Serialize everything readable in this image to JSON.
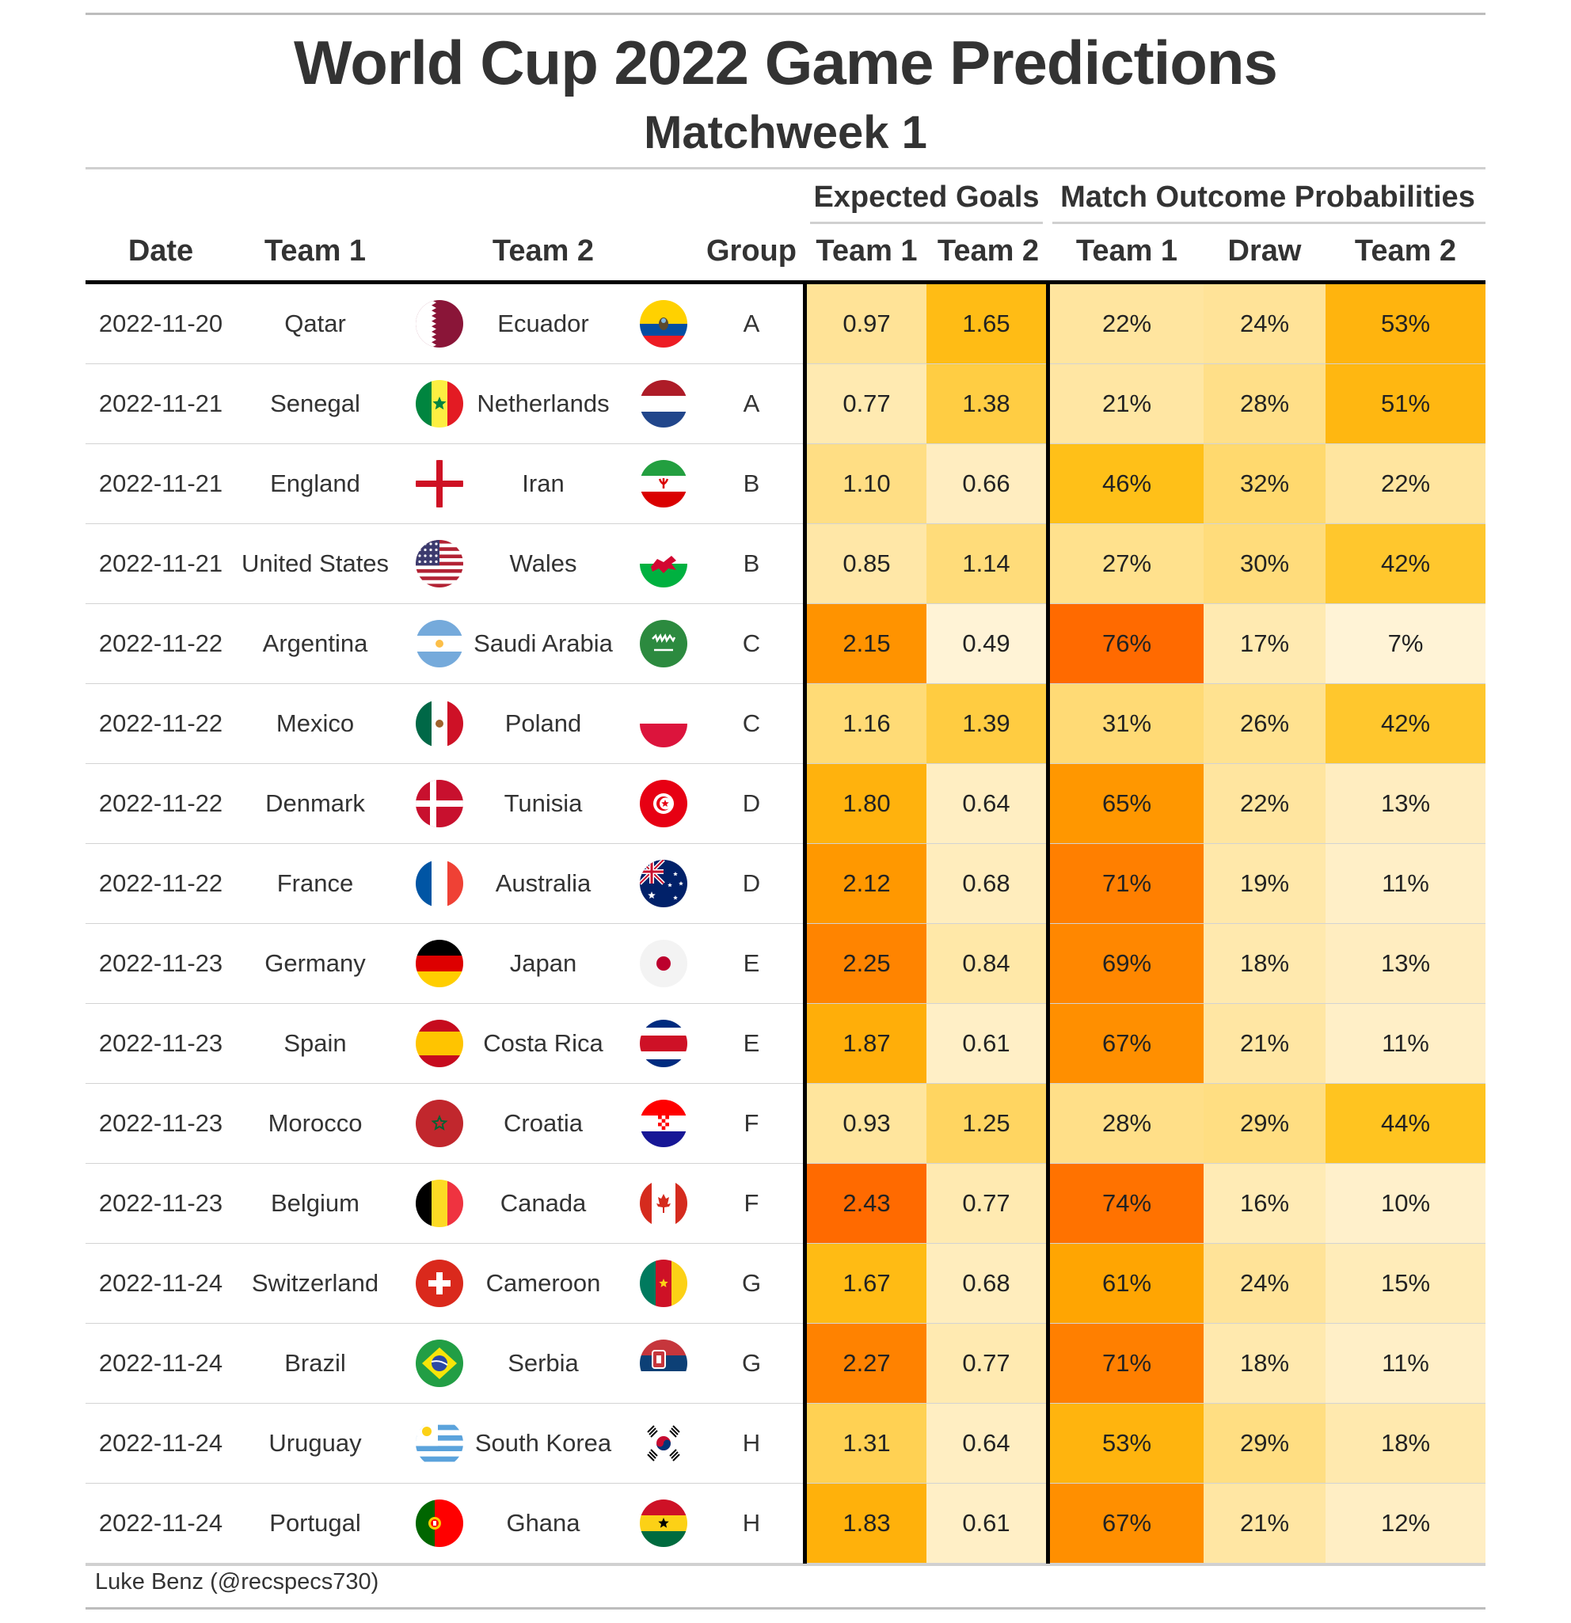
{
  "header": {
    "title": "World Cup 2022 Game Predictions",
    "subtitle": "Matchweek 1"
  },
  "spanners": {
    "expected_goals": "Expected Goals",
    "outcome_probs": "Match Outcome Probabilities"
  },
  "columns": {
    "date": "Date",
    "team1": "Team 1",
    "team2": "Team 2",
    "group": "Group",
    "xg1": "Team 1",
    "xg2": "Team 2",
    "p1": "Team 1",
    "draw": "Draw",
    "p2": "Team 2"
  },
  "footer": {
    "source": "Luke Benz (@recspecs730)"
  },
  "colors": {
    "scale_low": "#fff3d6",
    "scale_high": "#ff6a00"
  },
  "chart_data": {
    "type": "table",
    "rows": [
      {
        "date": "2022-11-20",
        "team1": "Qatar",
        "flag1": "qatar-flag-icon",
        "team2": "Ecuador",
        "flag2": "ecuador-flag-icon",
        "group": "A",
        "xg1": "0.97",
        "xg2": "1.65",
        "p1": "22%",
        "draw": "24%",
        "p2": "53%"
      },
      {
        "date": "2022-11-21",
        "team1": "Senegal",
        "flag1": "senegal-flag-icon",
        "team2": "Netherlands",
        "flag2": "netherlands-flag-icon",
        "group": "A",
        "xg1": "0.77",
        "xg2": "1.38",
        "p1": "21%",
        "draw": "28%",
        "p2": "51%"
      },
      {
        "date": "2022-11-21",
        "team1": "England",
        "flag1": "england-flag-icon",
        "team2": "Iran",
        "flag2": "iran-flag-icon",
        "group": "B",
        "xg1": "1.10",
        "xg2": "0.66",
        "p1": "46%",
        "draw": "32%",
        "p2": "22%"
      },
      {
        "date": "2022-11-21",
        "team1": "United States",
        "flag1": "usa-flag-icon",
        "team2": "Wales",
        "flag2": "wales-flag-icon",
        "group": "B",
        "xg1": "0.85",
        "xg2": "1.14",
        "p1": "27%",
        "draw": "30%",
        "p2": "42%"
      },
      {
        "date": "2022-11-22",
        "team1": "Argentina",
        "flag1": "argentina-flag-icon",
        "team2": "Saudi Arabia",
        "flag2": "saudi-arabia-flag-icon",
        "group": "C",
        "xg1": "2.15",
        "xg2": "0.49",
        "p1": "76%",
        "draw": "17%",
        "p2": "7%"
      },
      {
        "date": "2022-11-22",
        "team1": "Mexico",
        "flag1": "mexico-flag-icon",
        "team2": "Poland",
        "flag2": "poland-flag-icon",
        "group": "C",
        "xg1": "1.16",
        "xg2": "1.39",
        "p1": "31%",
        "draw": "26%",
        "p2": "42%"
      },
      {
        "date": "2022-11-22",
        "team1": "Denmark",
        "flag1": "denmark-flag-icon",
        "team2": "Tunisia",
        "flag2": "tunisia-flag-icon",
        "group": "D",
        "xg1": "1.80",
        "xg2": "0.64",
        "p1": "65%",
        "draw": "22%",
        "p2": "13%"
      },
      {
        "date": "2022-11-22",
        "team1": "France",
        "flag1": "france-flag-icon",
        "team2": "Australia",
        "flag2": "australia-flag-icon",
        "group": "D",
        "xg1": "2.12",
        "xg2": "0.68",
        "p1": "71%",
        "draw": "19%",
        "p2": "11%"
      },
      {
        "date": "2022-11-23",
        "team1": "Germany",
        "flag1": "germany-flag-icon",
        "team2": "Japan",
        "flag2": "japan-flag-icon",
        "group": "E",
        "xg1": "2.25",
        "xg2": "0.84",
        "p1": "69%",
        "draw": "18%",
        "p2": "13%"
      },
      {
        "date": "2022-11-23",
        "team1": "Spain",
        "flag1": "spain-flag-icon",
        "team2": "Costa Rica",
        "flag2": "costa-rica-flag-icon",
        "group": "E",
        "xg1": "1.87",
        "xg2": "0.61",
        "p1": "67%",
        "draw": "21%",
        "p2": "11%"
      },
      {
        "date": "2022-11-23",
        "team1": "Morocco",
        "flag1": "morocco-flag-icon",
        "team2": "Croatia",
        "flag2": "croatia-flag-icon",
        "group": "F",
        "xg1": "0.93",
        "xg2": "1.25",
        "p1": "28%",
        "draw": "29%",
        "p2": "44%"
      },
      {
        "date": "2022-11-23",
        "team1": "Belgium",
        "flag1": "belgium-flag-icon",
        "team2": "Canada",
        "flag2": "canada-flag-icon",
        "group": "F",
        "xg1": "2.43",
        "xg2": "0.77",
        "p1": "74%",
        "draw": "16%",
        "p2": "10%"
      },
      {
        "date": "2022-11-24",
        "team1": "Switzerland",
        "flag1": "switzerland-flag-icon",
        "team2": "Cameroon",
        "flag2": "cameroon-flag-icon",
        "group": "G",
        "xg1": "1.67",
        "xg2": "0.68",
        "p1": "61%",
        "draw": "24%",
        "p2": "15%"
      },
      {
        "date": "2022-11-24",
        "team1": "Brazil",
        "flag1": "brazil-flag-icon",
        "team2": "Serbia",
        "flag2": "serbia-flag-icon",
        "group": "G",
        "xg1": "2.27",
        "xg2": "0.77",
        "p1": "71%",
        "draw": "18%",
        "p2": "11%"
      },
      {
        "date": "2022-11-24",
        "team1": "Uruguay",
        "flag1": "uruguay-flag-icon",
        "team2": "South Korea",
        "flag2": "south-korea-flag-icon",
        "group": "H",
        "xg1": "1.31",
        "xg2": "0.64",
        "p1": "53%",
        "draw": "29%",
        "p2": "18%"
      },
      {
        "date": "2022-11-24",
        "team1": "Portugal",
        "flag1": "portugal-flag-icon",
        "team2": "Ghana",
        "flag2": "ghana-flag-icon",
        "group": "H",
        "xg1": "1.83",
        "xg2": "0.61",
        "p1": "67%",
        "draw": "21%",
        "p2": "12%"
      }
    ]
  }
}
